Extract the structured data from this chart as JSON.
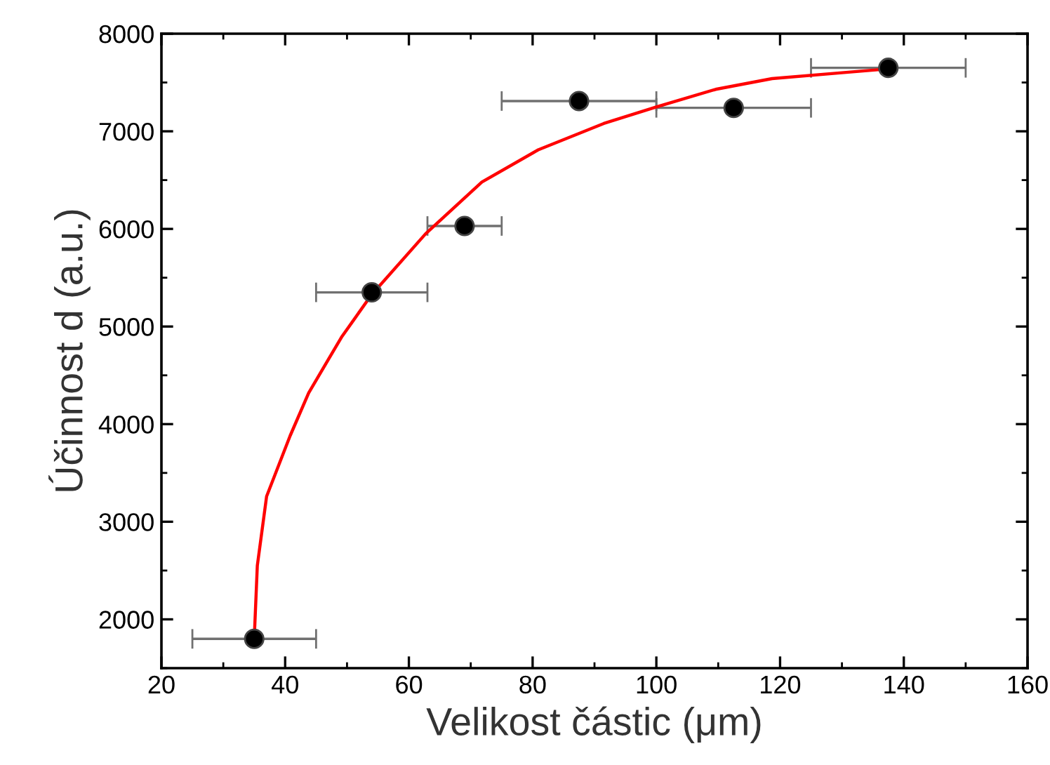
{
  "chart_data": {
    "type": "scatter",
    "xlabel": "Velikost částic (μm)",
    "ylabel": "Účinnost d (a.u.)",
    "xlim": [
      20,
      160
    ],
    "xticks": [
      20,
      40,
      60,
      80,
      100,
      120,
      140,
      160
    ],
    "ylim": [
      1500,
      8000
    ],
    "yticks": [
      2000,
      3000,
      4000,
      5000,
      6000,
      7000,
      8000
    ],
    "grid": false,
    "series": [
      {
        "color": "#000000",
        "marker": "circle",
        "x": [
          35,
          54,
          69,
          87.5,
          112.5,
          137.5
        ],
        "values": [
          1800,
          5350,
          6030,
          7310,
          7240,
          7650
        ],
        "xerrors": [
          [
            25,
            45
          ],
          [
            45,
            63
          ],
          [
            63,
            75
          ],
          [
            75,
            100
          ],
          [
            100,
            125
          ],
          [
            125,
            150
          ]
        ]
      },
      {
        "type": "line",
        "color": "#ff0000",
        "marker": "none",
        "line_style": "solid",
        "x": [
          35,
          35.5,
          37,
          40.8,
          43.8,
          49.1,
          53.9,
          62.7,
          71.8,
          80.9,
          91.5,
          100,
          109.6,
          118.7,
          130,
          137.6
        ],
        "values": [
          1800,
          2550,
          3260,
          3880,
          4320,
          4890,
          5320,
          5950,
          6480,
          6810,
          7080,
          7250,
          7430,
          7540,
          7600,
          7640
        ]
      }
    ]
  }
}
